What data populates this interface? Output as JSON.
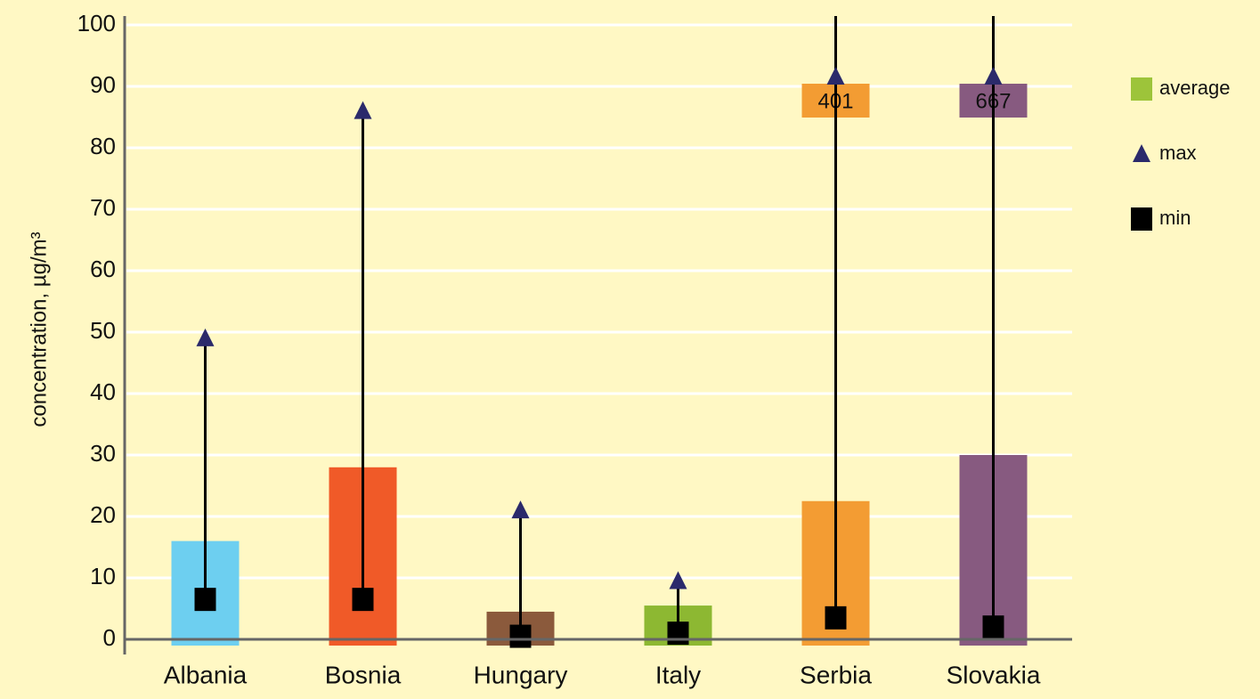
{
  "chart_data": {
    "type": "bar",
    "y_label": "concentration, µg/m³",
    "categories": [
      "Albania",
      "Bosnia",
      "Hungary",
      "Italy",
      "Serbia",
      "Slovakia"
    ],
    "bar_colors": [
      "#6dcff0",
      "#f05a28",
      "#8b5a3c",
      "#8db832",
      "#f39c33",
      "#875a80"
    ],
    "series": [
      {
        "name": "average",
        "color": "#9dc43a",
        "values": [
          16,
          28,
          4.5,
          5.5,
          22.5,
          30
        ]
      },
      {
        "name": "max",
        "color": "#2b2a6b",
        "values": [
          49,
          86,
          21,
          9.5,
          401,
          667
        ],
        "value_labels": [
          null,
          null,
          null,
          null,
          "401",
          "667"
        ]
      },
      {
        "name": "min",
        "color": "#000000",
        "values": [
          6.5,
          6.5,
          0.5,
          1,
          3.5,
          2
        ]
      }
    ],
    "ylim": [
      0,
      100
    ],
    "yticks": [
      0,
      10,
      20,
      30,
      40,
      50,
      60,
      70,
      80,
      90,
      100
    ],
    "grid": true,
    "legend": "right"
  }
}
